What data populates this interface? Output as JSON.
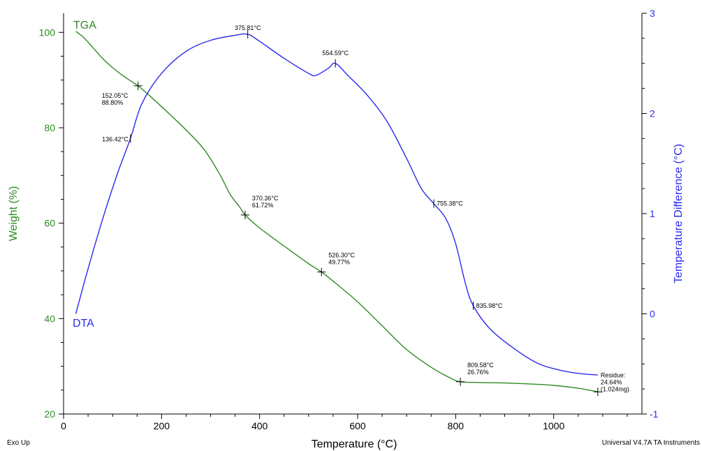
{
  "chart_data": {
    "type": "line",
    "title": "",
    "xlabel": "Temperature (°C)",
    "ylabel_left": "Weight (%)",
    "ylabel_right": "Temperature Difference (°C)",
    "xlim": [
      0,
      1180
    ],
    "ylim_left": [
      20,
      104
    ],
    "ylim_right": [
      -1,
      3
    ],
    "xticks": [
      0,
      200,
      400,
      600,
      800,
      1000
    ],
    "yticks_left": [
      20,
      40,
      60,
      80,
      100
    ],
    "yticks_right": [
      -1,
      0,
      1,
      2,
      3
    ],
    "grid": false,
    "footer_left": "Exo Up",
    "footer_right": "Universal V4.7A TA Instruments",
    "colors": {
      "tga": "#2e8b22",
      "dta": "#2b2bee",
      "axis": "#000000"
    },
    "series": [
      {
        "name": "TGA",
        "axis": "left",
        "x": [
          25,
          40,
          60,
          80,
          100,
          120,
          140,
          152.05,
          180,
          220,
          260,
          290,
          320,
          340,
          360,
          370.36,
          400,
          450,
          500,
          526.3,
          560,
          600,
          650,
          700,
          750,
          790,
          809.58,
          850,
          900,
          950,
          1000,
          1050,
          1090
        ],
        "y": [
          100.2,
          99.0,
          96.8,
          94.5,
          92.6,
          91.0,
          89.6,
          88.8,
          86.3,
          82.5,
          78.5,
          75.0,
          70.0,
          66.0,
          63.3,
          61.72,
          59.0,
          55.2,
          51.5,
          49.77,
          47.0,
          43.5,
          38.5,
          33.5,
          29.8,
          27.5,
          26.76,
          26.6,
          26.5,
          26.3,
          26.0,
          25.4,
          24.64
        ]
      },
      {
        "name": "DTA",
        "axis": "right",
        "x": [
          25,
          50,
          80,
          110,
          136.42,
          160,
          200,
          250,
          300,
          350,
          375.81,
          400,
          450,
          500,
          515,
          540,
          554.59,
          580,
          620,
          660,
          700,
          730,
          755.38,
          780,
          800,
          820,
          835.98,
          870,
          920,
          970,
          1020,
          1060,
          1090
        ],
        "y": [
          0.0,
          0.45,
          0.95,
          1.4,
          1.75,
          2.1,
          2.4,
          2.62,
          2.73,
          2.78,
          2.79,
          2.72,
          2.55,
          2.4,
          2.38,
          2.45,
          2.5,
          2.38,
          2.18,
          1.92,
          1.55,
          1.25,
          1.1,
          0.95,
          0.7,
          0.3,
          0.08,
          -0.15,
          -0.35,
          -0.5,
          -0.57,
          -0.6,
          -0.61
        ]
      }
    ],
    "series_labels": {
      "tga": "TGA",
      "dta": "DTA"
    },
    "annotations": [
      {
        "series": "TGA",
        "x": 152.05,
        "y": 88.8,
        "lines": [
          "152.05°C",
          "88.80%"
        ]
      },
      {
        "series": "TGA",
        "x": 370.36,
        "y": 61.72,
        "lines": [
          "370.36°C",
          "61.72%"
        ]
      },
      {
        "series": "TGA",
        "x": 526.3,
        "y": 49.77,
        "lines": [
          "526.30°C",
          "49.77%"
        ]
      },
      {
        "series": "TGA",
        "x": 809.58,
        "y": 26.76,
        "lines": [
          "809.58°C",
          "26.76%"
        ]
      },
      {
        "series": "TGA",
        "x": 1090,
        "y": 24.64,
        "lines": [
          "Residue:",
          "24.64%",
          "(1.024mg)"
        ]
      },
      {
        "series": "DTA",
        "x": 136.42,
        "y": 1.75,
        "lines": [
          "136.42°C"
        ]
      },
      {
        "series": "DTA",
        "x": 375.81,
        "y": 2.79,
        "lines": [
          "375.81°C"
        ]
      },
      {
        "series": "DTA",
        "x": 554.59,
        "y": 2.5,
        "lines": [
          "554.59°C"
        ]
      },
      {
        "series": "DTA",
        "x": 755.38,
        "y": 1.1,
        "lines": [
          "755.38°C"
        ]
      },
      {
        "series": "DTA",
        "x": 835.98,
        "y": 0.08,
        "lines": [
          "835.98°C"
        ]
      }
    ]
  }
}
